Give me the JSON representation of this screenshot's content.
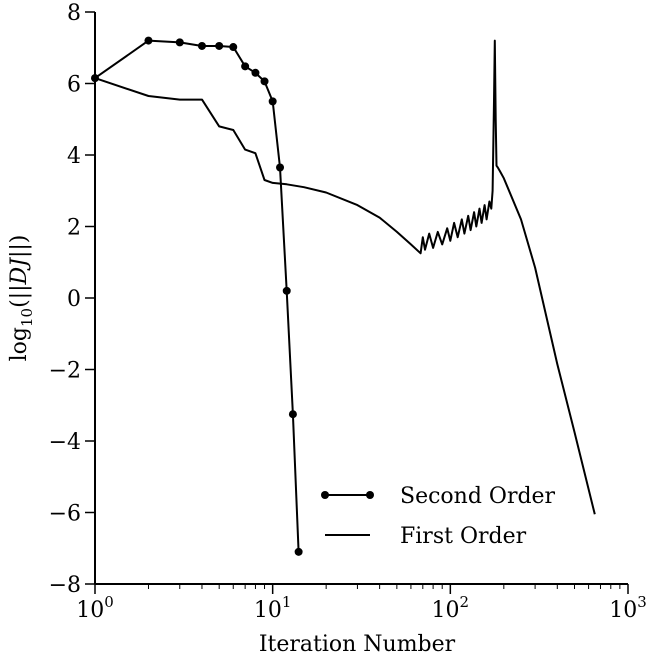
{
  "chart_data": {
    "type": "line",
    "title": "",
    "xlabel": "Iteration Number",
    "ylabel": "log10(||DJ||)",
    "x_scale": "log",
    "xlim": [
      1,
      1000
    ],
    "ylim": [
      -8,
      8
    ],
    "x_ticks": [
      {
        "value": 1,
        "base": "10",
        "exp": "0"
      },
      {
        "value": 10,
        "base": "10",
        "exp": "1"
      },
      {
        "value": 100,
        "base": "10",
        "exp": "2"
      },
      {
        "value": 1000,
        "base": "10",
        "exp": "3"
      }
    ],
    "y_ticks": [
      {
        "value": 8,
        "label": "8"
      },
      {
        "value": 6,
        "label": "6"
      },
      {
        "value": 4,
        "label": "4"
      },
      {
        "value": 2,
        "label": "2"
      },
      {
        "value": 0,
        "label": "0"
      },
      {
        "value": -2,
        "label": "−2"
      },
      {
        "value": -4,
        "label": "−4"
      },
      {
        "value": -6,
        "label": "−6"
      },
      {
        "value": -8,
        "label": "−8"
      }
    ],
    "grid": false,
    "legend_position": "lower-right",
    "series": [
      {
        "name": "Second Order",
        "marker": "circle",
        "color": "#000000",
        "x": [
          1,
          2,
          3,
          4,
          5,
          6,
          7,
          8,
          9,
          10,
          11,
          12,
          13,
          14
        ],
        "y": [
          6.15,
          7.2,
          7.15,
          7.05,
          7.05,
          7.02,
          6.48,
          6.3,
          6.06,
          5.5,
          3.65,
          0.2,
          -3.25,
          -7.1
        ]
      },
      {
        "name": "First Order",
        "marker": "none",
        "color": "#000000",
        "x": [
          1,
          2,
          3,
          4,
          5,
          6,
          7,
          8,
          9,
          10,
          12,
          15,
          20,
          30,
          40,
          50,
          60,
          68,
          70,
          72,
          76,
          80,
          85,
          90,
          96,
          100,
          105,
          110,
          116,
          120,
          126,
          130,
          136,
          140,
          146,
          150,
          156,
          160,
          166,
          170,
          173,
          176,
          178,
          180,
          182,
          185,
          190,
          200,
          250,
          300,
          400,
          500,
          650
        ],
        "y": [
          6.15,
          5.65,
          5.55,
          5.55,
          4.8,
          4.7,
          4.15,
          4.05,
          3.3,
          3.22,
          3.18,
          3.1,
          2.95,
          2.6,
          2.25,
          1.85,
          1.5,
          1.25,
          1.7,
          1.35,
          1.8,
          1.4,
          1.85,
          1.5,
          1.95,
          1.6,
          2.1,
          1.7,
          2.2,
          1.8,
          2.3,
          1.9,
          2.4,
          2.0,
          2.5,
          2.1,
          2.6,
          2.2,
          2.7,
          2.5,
          3.0,
          5.5,
          7.2,
          5.0,
          3.7,
          3.65,
          3.55,
          3.35,
          2.2,
          0.85,
          -1.85,
          -3.75,
          -6.05
        ]
      }
    ]
  }
}
